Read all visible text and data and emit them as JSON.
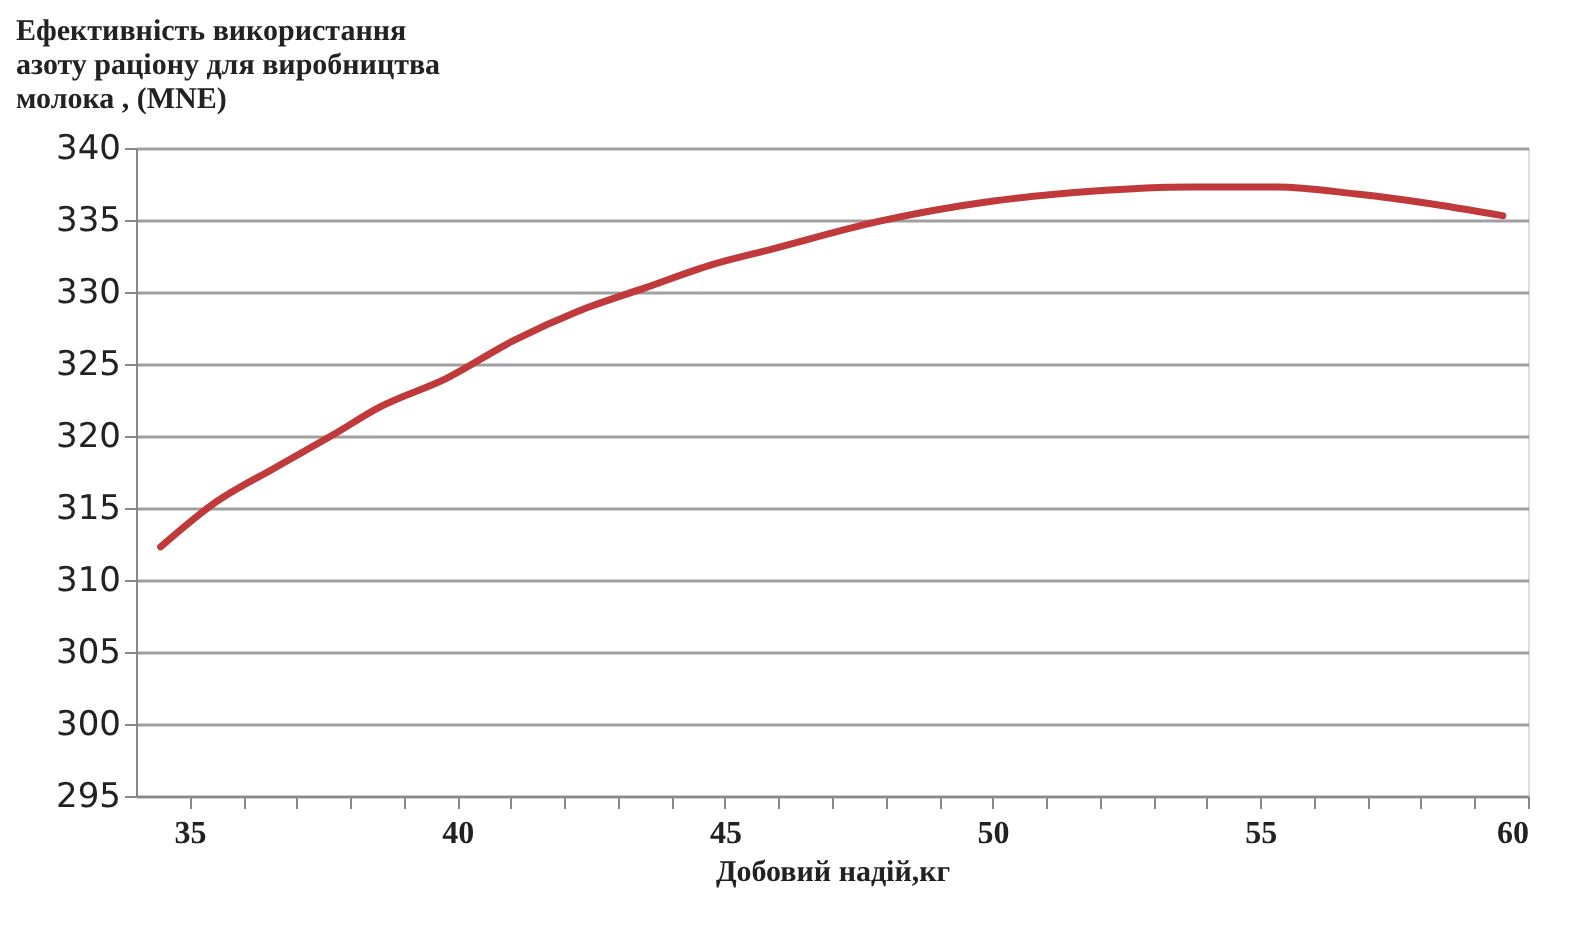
{
  "chart_data": {
    "type": "line",
    "title": [
      "Ефективність використання",
      "азоту раціону для виробництва",
      "молока , (MNE)"
    ],
    "xlabel": "Добовий надій,кг",
    "series": [
      {
        "color": "#c0393b",
        "x": [
          34.46,
          35.45,
          36.6,
          37.69,
          38.55,
          39.8,
          41.04,
          42.28,
          43.52,
          44.76,
          45.9,
          47.87,
          49.98,
          51.84,
          53.7,
          55.31,
          56.8,
          58.05,
          59.53
        ],
        "values": [
          312.3,
          315.3,
          317.8,
          320.1,
          322.0,
          324.0,
          326.6,
          328.7,
          330.3,
          331.9,
          333.0,
          334.9,
          336.3,
          337.0,
          337.3,
          337.3,
          336.8,
          336.2,
          335.3
        ]
      }
    ],
    "xlim": [
      34,
      60
    ],
    "ylim": [
      295,
      340
    ],
    "xticks": [
      35,
      {
        "value": 36,
        "label": null
      },
      {
        "value": 37,
        "label": null
      },
      {
        "value": 38,
        "label": null
      },
      {
        "value": 39,
        "label": null
      },
      40,
      {
        "value": 41,
        "label": null
      },
      {
        "value": 42,
        "label": null
      },
      {
        "value": 43,
        "label": null
      },
      {
        "value": 44,
        "label": null
      },
      45,
      {
        "value": 46,
        "label": null
      },
      {
        "value": 47,
        "label": null
      },
      {
        "value": 48,
        "label": null
      },
      {
        "value": 49,
        "label": null
      },
      50,
      {
        "value": 51,
        "label": null
      },
      {
        "value": 52,
        "label": null
      },
      {
        "value": 53,
        "label": null
      },
      {
        "value": 54,
        "label": null
      },
      55,
      {
        "value": 56,
        "label": null
      },
      {
        "value": 57,
        "label": null
      },
      {
        "value": 58,
        "label": null
      },
      {
        "value": 59,
        "label": null
      },
      60
    ],
    "yticks": [
      295,
      300,
      305,
      310,
      315,
      320,
      325,
      330,
      335,
      340
    ],
    "grid": "y",
    "marker": "none",
    "line_style": "solid"
  }
}
